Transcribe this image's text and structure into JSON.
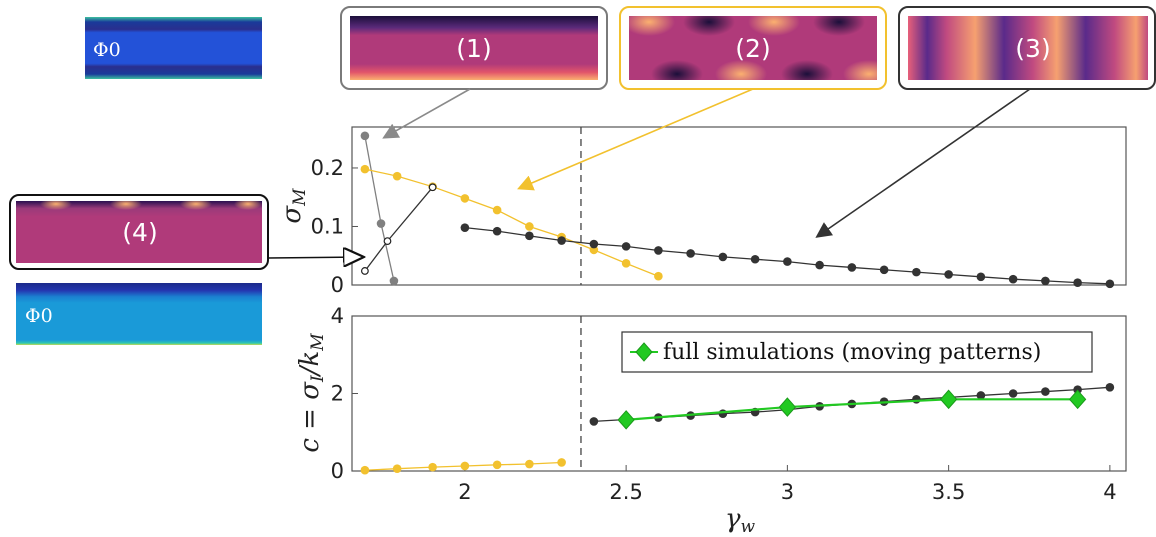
{
  "chart_data": [
    {
      "type": "line",
      "ylabel": "σ_M",
      "xlim": [
        1.65,
        4.05
      ],
      "ylim": [
        0,
        0.27
      ],
      "yticks": [
        "0",
        "0.1",
        "0.2"
      ],
      "vline_x": 2.36,
      "series": [
        {
          "color": "#808080",
          "marker": "filled",
          "x": [
            1.69,
            1.74,
            1.78
          ],
          "y": [
            0.255,
            0.105,
            0.007
          ]
        },
        {
          "color": "#f2c12e",
          "marker": "filled",
          "x": [
            1.69,
            1.79,
            1.9,
            2.0,
            2.1,
            2.2,
            2.3,
            2.4,
            2.5,
            2.6
          ],
          "y": [
            0.198,
            0.186,
            0.168,
            0.148,
            0.128,
            0.1,
            0.082,
            0.06,
            0.037,
            0.015
          ]
        },
        {
          "color": "#333333",
          "marker": "open",
          "x": [
            1.69,
            1.76,
            1.9
          ],
          "y": [
            0.024,
            0.075,
            0.167
          ]
        },
        {
          "color": "#333333",
          "marker": "filled",
          "x": [
            2.0,
            2.1,
            2.2,
            2.3,
            2.4,
            2.5,
            2.6,
            2.7,
            2.8,
            2.9,
            3.0,
            3.1,
            3.2,
            3.3,
            3.4,
            3.5,
            3.6,
            3.7,
            3.8,
            3.9,
            4.0
          ],
          "y": [
            0.098,
            0.092,
            0.084,
            0.076,
            0.07,
            0.066,
            0.059,
            0.054,
            0.048,
            0.044,
            0.04,
            0.034,
            0.03,
            0.026,
            0.022,
            0.018,
            0.014,
            0.01,
            0.007,
            0.004,
            0.002
          ]
        }
      ]
    },
    {
      "type": "line",
      "xlabel": "γ_w",
      "ylabel": "c = σ_I / k_M",
      "xlim": [
        1.65,
        4.05
      ],
      "ylim": [
        0,
        4
      ],
      "yticks": [
        "0",
        "2",
        "4"
      ],
      "xticks": [
        "2",
        "2.5",
        "3",
        "3.5",
        "4"
      ],
      "vline_x": 2.36,
      "legend": "full simulations (moving patterns)",
      "series": [
        {
          "color": "#f2c12e",
          "marker": "filled",
          "x": [
            1.69,
            1.79,
            1.9,
            2.0,
            2.1,
            2.2,
            2.3
          ],
          "y": [
            0.02,
            0.06,
            0.1,
            0.13,
            0.16,
            0.18,
            0.22
          ]
        },
        {
          "color": "#333333",
          "marker": "filled",
          "x": [
            2.4,
            2.5,
            2.6,
            2.7,
            2.8,
            2.9,
            3.0,
            3.1,
            3.2,
            3.3,
            3.4,
            3.5,
            3.6,
            3.7,
            3.8,
            3.9,
            4.0
          ],
          "y": [
            1.28,
            1.33,
            1.38,
            1.43,
            1.48,
            1.52,
            1.58,
            1.67,
            1.73,
            1.79,
            1.85,
            1.9,
            1.95,
            2.0,
            2.05,
            2.1,
            2.16
          ]
        },
        {
          "name": "full simulations (moving patterns)",
          "color": "#22c922",
          "marker": "diamond",
          "x": [
            2.5,
            3.0,
            3.5,
            3.9
          ],
          "y": [
            1.32,
            1.65,
            1.85,
            1.85
          ]
        }
      ]
    }
  ],
  "snapshots": [
    {
      "label": "(1)",
      "frame": "#7a7a7a"
    },
    {
      "label": "(2)",
      "frame": "#f2c12e"
    },
    {
      "label": "(3)",
      "frame": "#333333"
    },
    {
      "label": "(4)",
      "frame": "#111111"
    }
  ],
  "phi_labels": [
    "Φ0",
    "Φ0"
  ]
}
